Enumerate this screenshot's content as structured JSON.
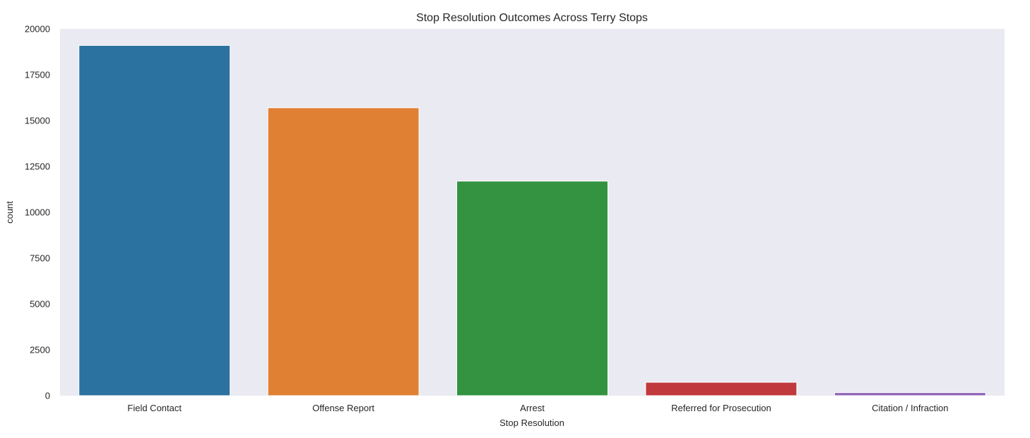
{
  "chart_data": {
    "type": "bar",
    "title": "Stop Resolution Outcomes Across Terry Stops",
    "xlabel": "Stop Resolution",
    "ylabel": "count",
    "categories": [
      "Field Contact",
      "Offense Report",
      "Arrest",
      "Referred for Prosecution",
      "Citation / Infraction"
    ],
    "values": [
      19100,
      15700,
      11700,
      730,
      170
    ],
    "colors": [
      "#2c72a0",
      "#e08033",
      "#339340",
      "#c0393c",
      "#9166b8"
    ],
    "ylim": [
      0,
      20000
    ],
    "yticks": [
      0,
      2500,
      5000,
      7500,
      10000,
      12500,
      15000,
      17500,
      20000
    ],
    "grid": false,
    "legend": "none",
    "plot_background": "#eaeaf2"
  }
}
